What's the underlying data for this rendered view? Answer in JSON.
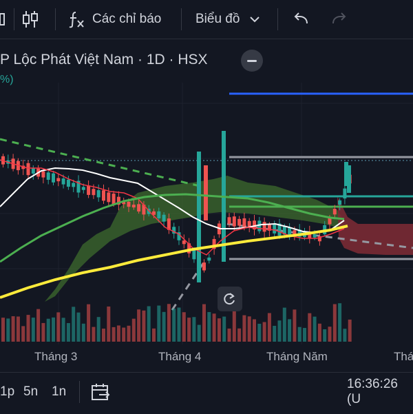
{
  "toolbar": {
    "indicators_label": "Các chỉ báo",
    "chart_type_label": "Biểu đồ"
  },
  "legend": {
    "title": "P Lộc Phát Việt Nam · 1D · HSX",
    "pct": "%)"
  },
  "xaxis": {
    "labels": [
      "Tháng 3",
      "Tháng 4",
      "Tháng Năm",
      "Thá"
    ]
  },
  "bottom": {
    "range_1": "1p",
    "range_2": "5n",
    "range_3": "1n",
    "time": "16:36:26 (U"
  },
  "colors": {
    "up": "#26a69a",
    "down": "#ef5350",
    "ma_yellow": "#ffeb3b",
    "ma_green": "#4caf50",
    "ma_white": "#ffffff",
    "ma_red": "#f23645",
    "ma_blue": "#2962ff",
    "cloud_green": "#3e6b2e",
    "cloud_red": "#7a2a34"
  }
}
